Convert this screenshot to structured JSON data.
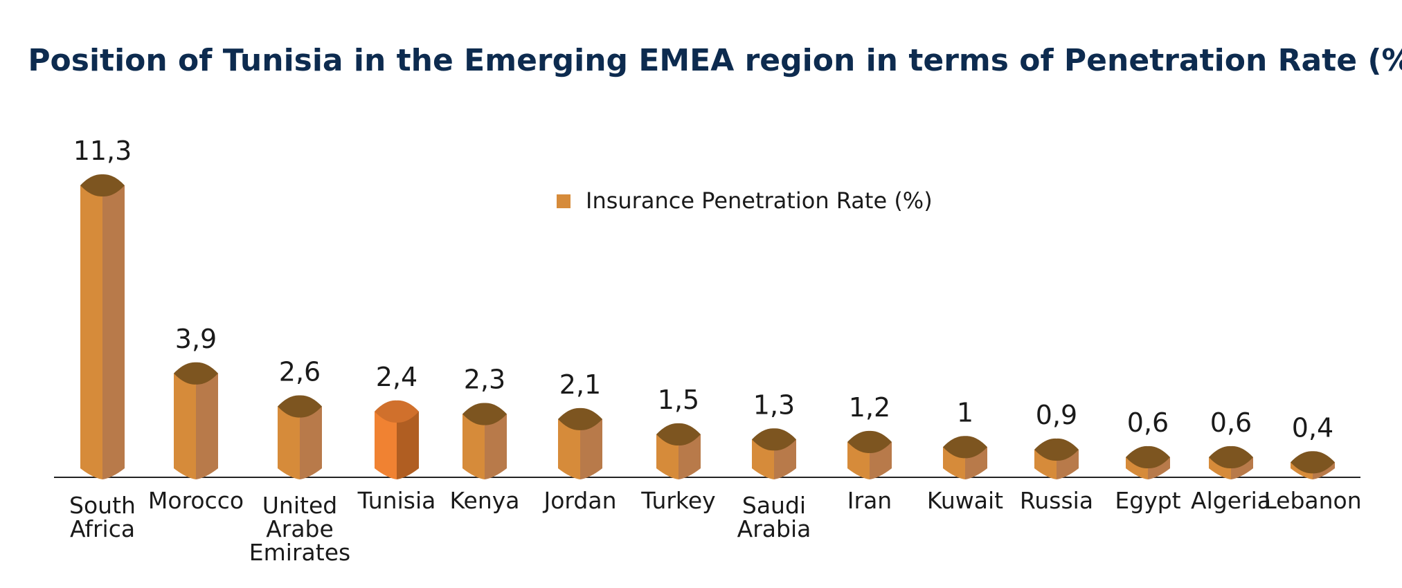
{
  "chart_data": {
    "type": "bar",
    "title": "Position of Tunisia in the Emerging EMEA region in terms of Penetration Rate (%)",
    "legend": {
      "label": "Insurance Penetration Rate (%)",
      "position": "top-center"
    },
    "categories": [
      [
        "South",
        "Africa"
      ],
      [
        "Morocco"
      ],
      [
        "United",
        "Arabe",
        "Emirates"
      ],
      [
        "Tunisia"
      ],
      [
        "Kenya"
      ],
      [
        "Jordan"
      ],
      [
        "Turkey"
      ],
      [
        "Saudi",
        "Arabia"
      ],
      [
        "Iran"
      ],
      [
        "Kuwait"
      ],
      [
        "Russia"
      ],
      [
        "Egypt"
      ],
      [
        "Algeria"
      ],
      [
        "Lebanon"
      ]
    ],
    "values": [
      11.3,
      3.9,
      2.6,
      2.4,
      2.3,
      2.1,
      1.5,
      1.3,
      1.2,
      1,
      0.9,
      0.6,
      0.6,
      0.4
    ],
    "value_labels": [
      "11,3",
      "3,9",
      "2,6",
      "2,4",
      "2,3",
      "2,1",
      "1,5",
      "1,3",
      "1,2",
      "1",
      "0,9",
      "0,6",
      "0,6",
      "0,4"
    ],
    "highlight_index": 3,
    "ylim": [
      0,
      11.3
    ],
    "grid": false,
    "colors": {
      "bar_front": "#d68b3a",
      "bar_side": "#b87a4a",
      "bar_top": "#7d5520",
      "highlight_front": "#f08232",
      "highlight_side": "#b05e22",
      "highlight_top": "#d0702c",
      "highlight_text": "#ef8a3c",
      "title": "#0d2b4f",
      "axis": "#222222",
      "legend_swatch": "#d68b3a"
    }
  }
}
